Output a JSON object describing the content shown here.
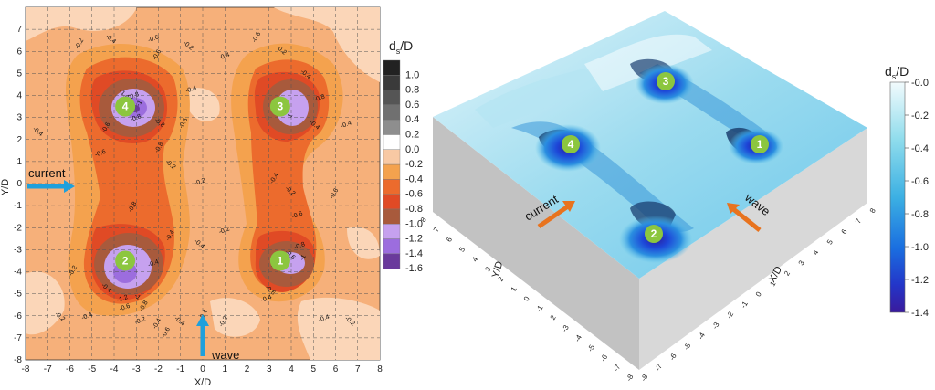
{
  "chart_data": [
    {
      "type": "contour",
      "xlabel": "X/D",
      "ylabel": "Y/D",
      "xlim": [
        -8,
        8
      ],
      "ylim": [
        -8,
        8
      ],
      "x_ticks": [
        "-8",
        "-7",
        "-6",
        "-5",
        "-4",
        "-3",
        "-2",
        "-1",
        "0",
        "1",
        "2",
        "3",
        "4",
        "5",
        "6",
        "7",
        "8"
      ],
      "y_ticks": [
        "-8",
        "-7",
        "-6",
        "-5",
        "-4",
        "-3",
        "-2",
        "-1",
        "0",
        "1",
        "2",
        "3",
        "4",
        "5",
        "6",
        "7"
      ],
      "grid": true,
      "colorbar": {
        "title": "d",
        "title_sub": "s",
        "title_suffix": "/D",
        "levels": [
          "1.0",
          "0.8",
          "0.6",
          "0.4",
          "0.2",
          "0.0",
          "-0.2",
          "-0.4",
          "-0.6",
          "-0.8",
          "-1.0",
          "-1.2",
          "-1.4",
          "-1.6"
        ],
        "colors": [
          "#222222",
          "#3a3a3a",
          "#555555",
          "#707070",
          "#8e8e8e",
          "#ffffff",
          "#f8c9a4",
          "#f4a24e",
          "#ec6b2d",
          "#e04a25",
          "#a85a3c",
          "#c6a1ef",
          "#9c6dde",
          "#6a3a9c"
        ]
      },
      "piles": [
        {
          "id": "1",
          "x": 3.5,
          "y": -3.5
        },
        {
          "id": "2",
          "x": -3.5,
          "y": -3.5
        },
        {
          "id": "3",
          "x": 3.5,
          "y": 3.5
        },
        {
          "id": "4",
          "x": -3.5,
          "y": 3.5
        }
      ],
      "contour_labels": [
        "-0.2",
        "-0.4",
        "-0.6",
        "-0.6",
        "-0.2",
        "-0.4",
        "-0.6",
        "-0.2",
        "-0.8",
        "-1",
        "-1.4",
        "-0.8",
        "-0.6",
        "-0.8",
        "-0.4",
        "-0.6",
        "-0.4",
        "-0.8",
        "-1",
        "-0.4",
        "-0.4",
        "-0.6",
        "-0.4",
        "-0.6",
        "-0.8",
        "-0.2",
        "-0.2",
        "-0.4",
        "-0.2",
        "-0.6",
        "-0.8",
        "-1",
        "-0.4",
        "-0.2",
        "-0.4",
        "-1.2",
        "-0.8",
        "-1",
        "-0.6",
        "-0.4",
        "-0.4",
        "-0.2",
        "-0.4",
        "-0.6",
        "-0.8",
        "-1",
        "-0.6",
        "-0.4",
        "-0.2",
        "-0.2",
        "-0.4",
        "-0.4",
        "-0.4",
        "-0.2",
        "-0.6",
        "-0.2",
        "-0.4",
        "-0.4"
      ],
      "annotations": [
        {
          "text": "current",
          "direction": "+x"
        },
        {
          "text": "wave",
          "direction": "+y"
        }
      ]
    },
    {
      "type": "surface3d",
      "xlabel": "X/D",
      "ylabel": "Y/D",
      "x_ticks": [
        "-8",
        "-7",
        "-6",
        "-5",
        "-4",
        "-3",
        "-2",
        "-1",
        "0",
        "1",
        "2",
        "3",
        "4",
        "5",
        "6",
        "7",
        "8"
      ],
      "y_ticks": [
        "-8",
        "-7",
        "-6",
        "-5",
        "-4",
        "-3",
        "-2",
        "-1",
        "0",
        "1",
        "2",
        "3",
        "4",
        "5",
        "6",
        "7",
        "8"
      ],
      "colorbar": {
        "title": "d",
        "title_sub": "s",
        "title_suffix": "/D",
        "ticks": [
          "-0.0",
          "-0.2",
          "-0.4",
          "-0.6",
          "-0.8",
          "-1.0",
          "-1.2",
          "-1.4"
        ],
        "range": [
          -1.4,
          0.0
        ]
      },
      "piles": [
        "1",
        "2",
        "3",
        "4"
      ],
      "annotations": [
        "current",
        "wave"
      ]
    }
  ]
}
